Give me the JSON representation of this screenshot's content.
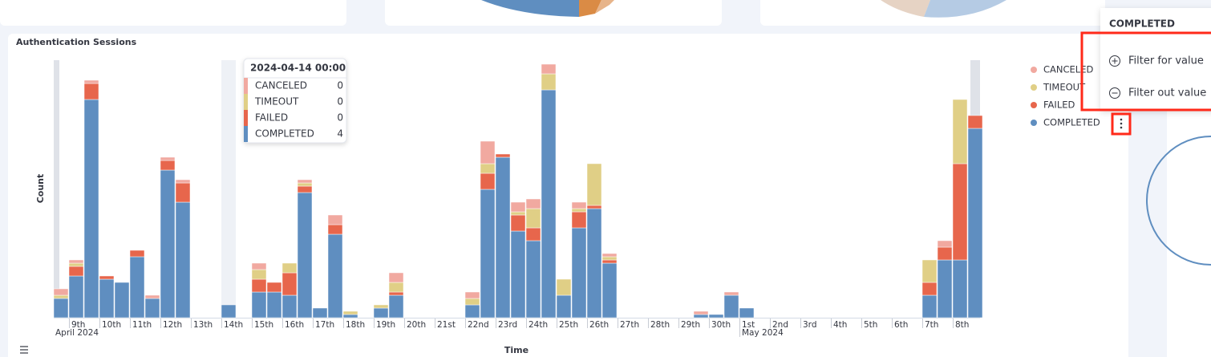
{
  "chart_data": {
    "type": "bar",
    "stacked": true,
    "title": "Authentication Sessions",
    "ylabel": "Count",
    "xlabel": "Time",
    "ylim": [
      0,
      80
    ],
    "x_period_labels": [
      "April 2024",
      "May 2024"
    ],
    "categories": [
      null,
      "9th",
      null,
      "10th",
      null,
      "11th",
      null,
      "12th",
      null,
      "13th",
      null,
      "14th",
      null,
      "15th",
      null,
      "16th",
      null,
      "17th",
      null,
      "18th",
      null,
      "19th",
      null,
      "20th",
      null,
      "21st",
      null,
      "22nd",
      null,
      "23rd",
      null,
      "24th",
      null,
      "25th",
      null,
      "26th",
      null,
      "27th",
      null,
      "28th",
      null,
      "29th",
      null,
      "30th",
      null,
      "1st",
      null,
      "2nd",
      null,
      "3rd",
      null,
      "4th",
      null,
      "5th",
      null,
      "6th",
      null,
      "7th",
      null,
      "8th",
      null
    ],
    "series": [
      {
        "name": "CANCELED",
        "color": "#f1a9a0",
        "values": [
          2,
          1,
          1,
          0,
          0,
          0,
          1,
          1,
          1,
          0,
          0,
          0,
          0,
          2,
          0,
          0,
          1,
          0,
          3,
          0,
          0,
          0,
          3,
          0,
          0,
          0,
          0,
          2,
          7,
          0,
          3,
          3,
          3,
          0,
          2,
          0,
          1,
          0,
          0,
          0,
          0,
          0,
          1,
          0,
          1,
          0,
          0,
          0,
          0,
          0,
          0,
          0,
          0,
          0,
          0,
          0,
          0,
          0,
          2,
          0,
          0
        ]
      },
      {
        "name": "TIMEOUT",
        "color": "#e0cf86",
        "values": [
          1,
          1,
          0,
          0,
          0,
          0,
          0,
          0,
          0,
          0,
          0,
          0,
          0,
          3,
          0,
          3,
          1,
          0,
          0,
          1,
          0,
          1,
          3,
          0,
          0,
          0,
          0,
          2,
          3,
          0,
          1,
          6,
          5,
          5,
          1,
          13,
          1,
          0,
          0,
          0,
          0,
          0,
          0,
          0,
          0,
          0,
          0,
          0,
          0,
          0,
          0,
          0,
          0,
          0,
          0,
          0,
          0,
          7,
          0,
          20,
          0
        ]
      },
      {
        "name": "FAILED",
        "color": "#e7664c",
        "values": [
          0,
          3,
          5,
          1,
          0,
          2,
          0,
          3,
          6,
          0,
          0,
          0,
          0,
          4,
          3,
          7,
          2,
          0,
          3,
          0,
          0,
          0,
          1,
          0,
          0,
          0,
          0,
          0,
          5,
          1,
          5,
          4,
          0,
          0,
          5,
          1,
          1,
          0,
          0,
          0,
          0,
          0,
          0,
          0,
          0,
          0,
          0,
          0,
          0,
          0,
          0,
          0,
          0,
          0,
          0,
          0,
          0,
          4,
          4,
          30,
          4
        ]
      },
      {
        "name": "COMPLETED",
        "color": "#5f8ec0",
        "values": [
          6,
          13,
          68,
          12,
          11,
          19,
          6,
          46,
          36,
          0,
          0,
          4,
          0,
          8,
          8,
          7,
          39,
          3,
          26,
          1,
          0,
          3,
          7,
          0,
          0,
          0,
          0,
          4,
          40,
          50,
          27,
          24,
          71,
          7,
          28,
          34,
          17,
          0,
          0,
          0,
          0,
          0,
          1,
          1,
          7,
          3,
          0,
          0,
          0,
          0,
          0,
          0,
          0,
          0,
          0,
          0,
          0,
          7,
          18,
          18,
          59
        ]
      }
    ],
    "tooltip": {
      "title": "2024-04-14 00:00"
    },
    "menu": {
      "items": [
        "Filter for value",
        "Filter out value"
      ]
    }
  }
}
